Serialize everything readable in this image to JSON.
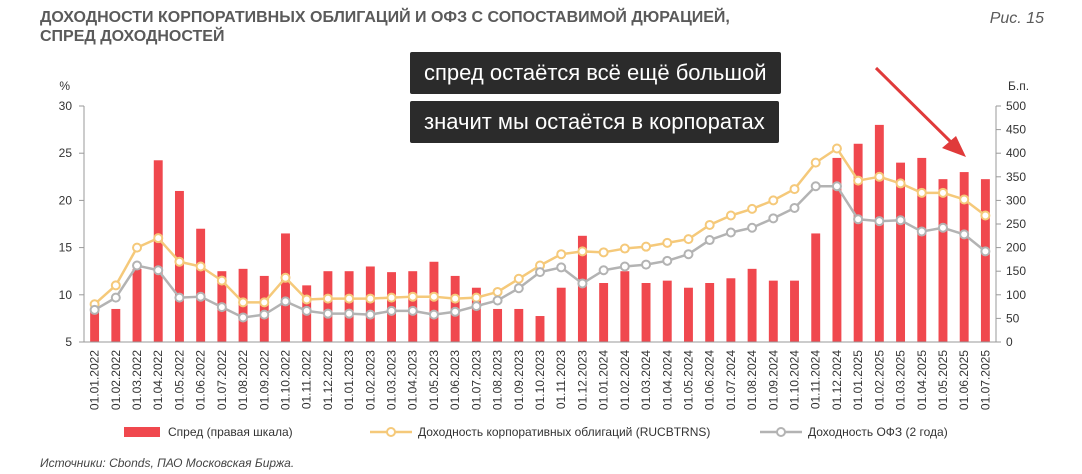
{
  "title_line1": "ДОХОДНОСТИ КОРПОРАТИВНЫХ ОБЛИГАЦИЙ И ОФЗ С СОПОСТАВИМОЙ ДЮРАЦИЕЙ,",
  "title_line2": "СПРЕД ДОХОДНОСТЕЙ",
  "figure_label": "Рис. 15",
  "source": "Источники: Cbonds, ПАО Московская Биржа.",
  "callouts": [
    "спред остаётся всё ещё большой",
    "значит мы остаётся в корпоратах"
  ],
  "colors": {
    "spread": "#f0484e",
    "corp": "#f5c97a",
    "ofz": "#b3b3b3",
    "arrow": "#e03a3a"
  },
  "chart_data": {
    "type": "bar",
    "left_axis_unit": "%",
    "right_axis_unit": "Б.п.",
    "ylim_left": [
      5,
      30
    ],
    "ylim_right": [
      0,
      500
    ],
    "left_ticks": [
      5,
      10,
      15,
      20,
      25,
      30
    ],
    "right_ticks": [
      0,
      50,
      100,
      150,
      200,
      250,
      300,
      350,
      400,
      450,
      500
    ],
    "categories": [
      "01.01.2022",
      "01.02.2022",
      "01.03.2022",
      "01.04.2022",
      "01.05.2022",
      "01.06.2022",
      "01.07.2022",
      "01.08.2022",
      "01.09.2022",
      "01.10.2022",
      "01.11.2022",
      "01.12.2022",
      "01.01.2023",
      "01.02.2023",
      "01.03.2023",
      "01.04.2023",
      "01.05.2023",
      "01.06.2023",
      "01.07.2023",
      "01.08.2023",
      "01.09.2023",
      "01.10.2023",
      "01.11.2023",
      "01.12.2023",
      "01.01.2024",
      "01.02.2024",
      "01.03.2024",
      "01.04.2024",
      "01.05.2024",
      "01.06.2024",
      "01.07.2024",
      "01.08.2024",
      "01.09.2024",
      "01.10.2024",
      "01.11.2024",
      "01.12.2024",
      "01.01.2025",
      "01.02.2025",
      "01.03.2025",
      "01.04.2025",
      "01.05.2025",
      "01.06.2025",
      "01.07.2025"
    ],
    "series": [
      {
        "name": "Спред (правая шкала)",
        "type": "bar",
        "axis": "right",
        "values": [
          65,
          70,
          155,
          385,
          320,
          240,
          150,
          155,
          140,
          230,
          120,
          150,
          150,
          160,
          148,
          150,
          170,
          140,
          115,
          70,
          70,
          55,
          115,
          225,
          125,
          150,
          125,
          130,
          115,
          125,
          135,
          155,
          130,
          130,
          230,
          390,
          420,
          460,
          380,
          390,
          345,
          360,
          345
        ]
      },
      {
        "name": "Доходность корпоративных облигаций (RUCBTRNS)",
        "type": "line",
        "axis": "left",
        "values": [
          9.0,
          11.0,
          15.0,
          16.0,
          13.5,
          13.0,
          11.5,
          9.2,
          9.2,
          11.8,
          9.5,
          9.6,
          9.6,
          9.6,
          9.7,
          9.8,
          9.8,
          9.6,
          9.7,
          10.3,
          11.7,
          13.1,
          14.3,
          14.6,
          14.5,
          14.9,
          15.1,
          15.5,
          15.9,
          17.4,
          18.4,
          19.1,
          20.0,
          21.2,
          24.0,
          25.5,
          22.1,
          22.5,
          21.8,
          20.8,
          20.8,
          20.1,
          18.4
        ]
      },
      {
        "name": "Доходность ОФЗ (2 года)",
        "type": "line",
        "axis": "left",
        "values": [
          8.4,
          9.7,
          13.1,
          12.6,
          9.7,
          9.8,
          8.7,
          7.6,
          7.9,
          9.3,
          8.3,
          8.0,
          8.0,
          7.9,
          8.3,
          8.3,
          7.9,
          8.2,
          8.8,
          9.4,
          10.7,
          12.4,
          12.9,
          11.2,
          12.6,
          13.0,
          13.2,
          13.6,
          14.3,
          15.8,
          16.6,
          17.1,
          18.1,
          19.2,
          21.5,
          21.5,
          18.0,
          17.8,
          17.9,
          16.7,
          17.1,
          16.4,
          14.6
        ]
      }
    ]
  }
}
